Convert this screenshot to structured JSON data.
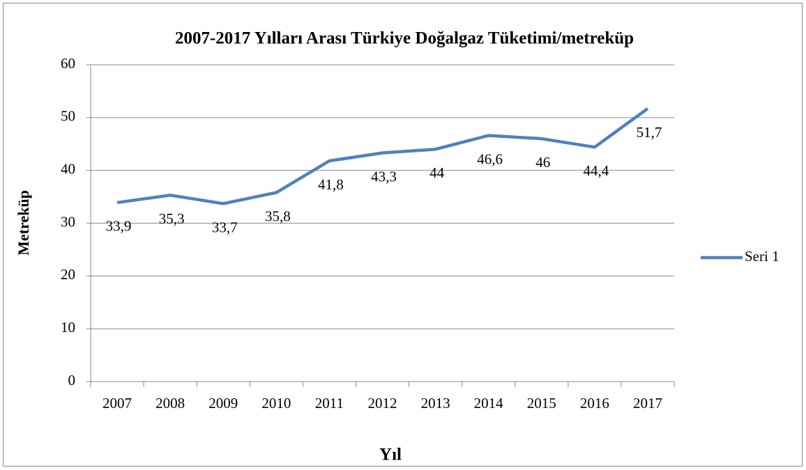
{
  "chart_data": {
    "type": "line",
    "title": "2007-2017 Yılları Arası Türkiye Doğalgaz Tüketimi/metreküp",
    "x_label": "Yıl",
    "y_label": "Metreküp",
    "categories": [
      "2007",
      "2008",
      "2009",
      "2010",
      "2011",
      "2012",
      "2013",
      "2014",
      "2015",
      "2016",
      "2017"
    ],
    "series": [
      {
        "name": "Seri 1",
        "color": "#4f81bd",
        "values": [
          33.9,
          35.3,
          33.7,
          35.8,
          41.8,
          43.3,
          44,
          46.6,
          46,
          44.4,
          51.7
        ],
        "value_labels": [
          "33,9",
          "35,3",
          "33,7",
          "35,8",
          "41,8",
          "43,3",
          "44",
          "46,6",
          "46",
          "44,4",
          "51,7"
        ]
      }
    ],
    "ylim": [
      0,
      60
    ],
    "yticks": [
      0,
      10,
      20,
      30,
      40,
      50,
      60
    ],
    "grid": true,
    "legend": "right"
  }
}
